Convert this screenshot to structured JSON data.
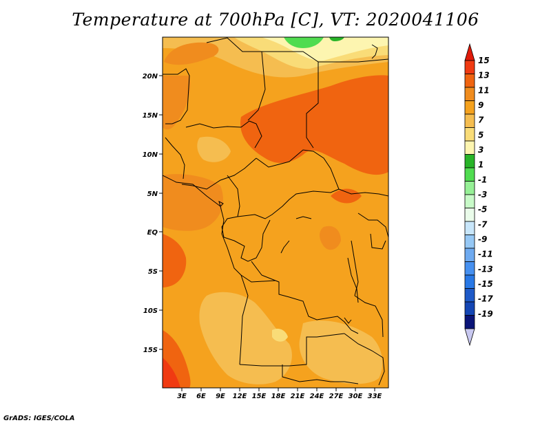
{
  "title": "Temperature at 700hPa [C], VT: 2020041106",
  "credit": "GrADS: IGES/COLA",
  "map": {
    "lat_labels": [
      "20N",
      "15N",
      "10N",
      "5N",
      "EQ",
      "5S",
      "10S",
      "15S"
    ],
    "lon_labels": [
      "3E",
      "6E",
      "9E",
      "12E",
      "15E",
      "18E",
      "21E",
      "24E",
      "27E",
      "30E",
      "33E"
    ]
  },
  "legend": {
    "labels": [
      "15",
      "13",
      "11",
      "9",
      "7",
      "5",
      "3",
      "1",
      "-1",
      "-3",
      "-5",
      "-7",
      "-9",
      "-11",
      "-13",
      "-15",
      "-17",
      "-19"
    ],
    "colors": [
      "#f03a12",
      "#f06410",
      "#f08c1e",
      "#f5a21e",
      "#f5bd50",
      "#f9dc78",
      "#fdf5b0",
      "#28b428",
      "#50dc50",
      "#96f096",
      "#c8fac8",
      "#eafcea",
      "#c8e6fa",
      "#96c8f5",
      "#6eaaf0",
      "#4690f0",
      "#2878e6",
      "#1e5ac8",
      "#1446b4",
      "#0a1478"
    ],
    "max_arrow_color": "#e01a0a",
    "min_arrow_color": "#c8c8f0"
  }
}
